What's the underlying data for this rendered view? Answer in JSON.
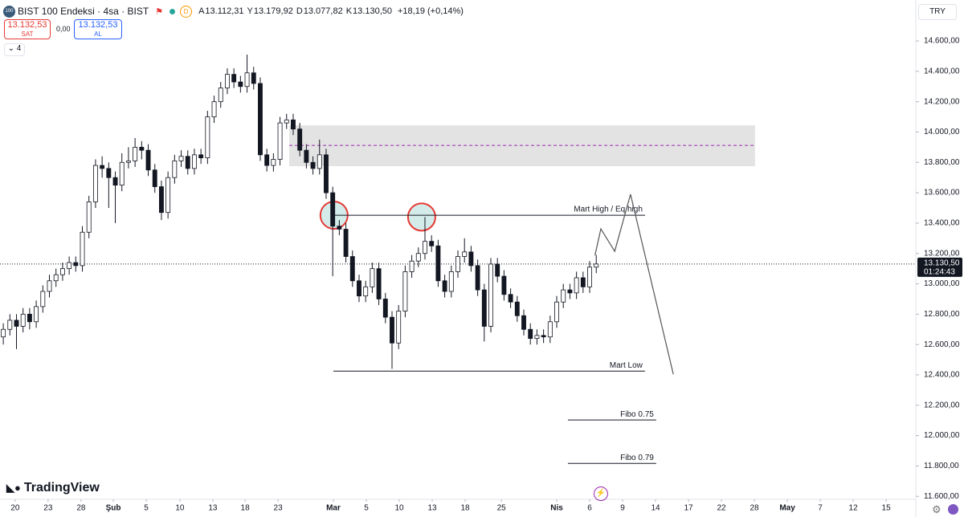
{
  "header": {
    "logo": "100",
    "symbol": "BIST 100 Endeksi · 4sa · BIST",
    "status": "D",
    "ohlc": [
      {
        "key": "A",
        "value": "13.112,31"
      },
      {
        "key": "Y",
        "value": "13.179,92"
      },
      {
        "key": "D",
        "value": "13.077,82"
      },
      {
        "key": "K",
        "value": "13.130,50"
      }
    ],
    "change": "+18,19 (+0,14%)",
    "sell": {
      "price": "13.132,53",
      "label": "SAT"
    },
    "spread": "0,00",
    "buy": {
      "price": "13.132,53",
      "label": "AL"
    },
    "indicators": "4",
    "currency": "TRY",
    "brand": "TradingView"
  },
  "chart_data": {
    "type": "candlestick",
    "up_color": "#ffffff",
    "down_color": "#131722",
    "wick_color": "#131722",
    "xlim": [
      -0.5,
      138.5
    ],
    "ylim": [
      11580,
      14870
    ],
    "yticks": [
      {
        "value": 11600,
        "label": "11.600,00"
      },
      {
        "value": 11800,
        "label": "11.800,00"
      },
      {
        "value": 12000,
        "label": "12.000,00"
      },
      {
        "value": 12200,
        "label": "12.200,00"
      },
      {
        "value": 12400,
        "label": "12.400,00"
      },
      {
        "value": 12600,
        "label": "12.600,00"
      },
      {
        "value": 12800,
        "label": "12.800,00"
      },
      {
        "value": 13000,
        "label": "13.000,00"
      },
      {
        "value": 13200,
        "label": "13.200,00"
      },
      {
        "value": 13400,
        "label": "13.400,00"
      },
      {
        "value": 13600,
        "label": "13.600,00"
      },
      {
        "value": 13800,
        "label": "13.800,00"
      },
      {
        "value": 14000,
        "label": "14.000,00"
      },
      {
        "value": 14200,
        "label": "14.200,00"
      },
      {
        "value": 14400,
        "label": "14.400,00"
      },
      {
        "value": 14600,
        "label": "14.600,00"
      }
    ],
    "xticks": [
      {
        "value": 1.8,
        "label": "20"
      },
      {
        "value": 6.8,
        "label": "23"
      },
      {
        "value": 11.8,
        "label": "28"
      },
      {
        "value": 16.7,
        "label": "Şub"
      },
      {
        "value": 21.7,
        "label": "5"
      },
      {
        "value": 26.8,
        "label": "10"
      },
      {
        "value": 31.8,
        "label": "13"
      },
      {
        "value": 36.7,
        "label": "18"
      },
      {
        "value": 41.7,
        "label": "23"
      },
      {
        "value": 50.1,
        "label": "Mar"
      },
      {
        "value": 55.1,
        "label": "5"
      },
      {
        "value": 60.1,
        "label": "10"
      },
      {
        "value": 65.1,
        "label": "13"
      },
      {
        "value": 70.1,
        "label": "18"
      },
      {
        "value": 75.6,
        "label": "25"
      },
      {
        "value": 84.0,
        "label": "Nis"
      },
      {
        "value": 89.0,
        "label": "6"
      },
      {
        "value": 94.0,
        "label": "9"
      },
      {
        "value": 99.0,
        "label": "14"
      },
      {
        "value": 104.0,
        "label": "17"
      },
      {
        "value": 109.0,
        "label": "22"
      },
      {
        "value": 114.0,
        "label": "28"
      },
      {
        "value": 119.0,
        "label": "May"
      },
      {
        "value": 124.0,
        "label": "7"
      },
      {
        "value": 129.0,
        "label": "12"
      },
      {
        "value": 134.0,
        "label": "15"
      }
    ],
    "last_price": {
      "value": 13130.5,
      "label": "13.130,50"
    },
    "countdown": "01:24:43",
    "candles": [
      [
        12650,
        12740,
        12600,
        12700
      ],
      [
        12700,
        12800,
        12660,
        12760
      ],
      [
        12760,
        12800,
        12570,
        12720
      ],
      [
        12720,
        12840,
        12680,
        12800
      ],
      [
        12800,
        12840,
        12700,
        12750
      ],
      [
        12750,
        12890,
        12710,
        12850
      ],
      [
        12850,
        12990,
        12810,
        12950
      ],
      [
        12950,
        13060,
        12910,
        13020
      ],
      [
        13020,
        13100,
        12980,
        13060
      ],
      [
        13060,
        13140,
        13020,
        13100
      ],
      [
        13100,
        13180,
        13060,
        13140
      ],
      [
        13140,
        13180,
        13080,
        13120
      ],
      [
        13120,
        13380,
        13080,
        13340
      ],
      [
        13340,
        13580,
        13300,
        13540
      ],
      [
        13540,
        13820,
        13500,
        13780
      ],
      [
        13780,
        13840,
        13700,
        13760
      ],
      [
        13760,
        13800,
        13500,
        13700
      ],
      [
        13700,
        13740,
        13400,
        13650
      ],
      [
        13650,
        13860,
        13610,
        13800
      ],
      [
        13800,
        13900,
        13760,
        13810
      ],
      [
        13810,
        13960,
        13770,
        13900
      ],
      [
        13900,
        13940,
        13820,
        13880
      ],
      [
        13880,
        13920,
        13710,
        13750
      ],
      [
        13750,
        13790,
        13600,
        13640
      ],
      [
        13640,
        13680,
        13420,
        13470
      ],
      [
        13470,
        13740,
        13430,
        13700
      ],
      [
        13700,
        13850,
        13660,
        13810
      ],
      [
        13810,
        13880,
        13770,
        13840
      ],
      [
        13840,
        13880,
        13720,
        13760
      ],
      [
        13760,
        13890,
        13720,
        13850
      ],
      [
        13850,
        13890,
        13790,
        13830
      ],
      [
        13830,
        14140,
        13790,
        14100
      ],
      [
        14100,
        14240,
        14060,
        14200
      ],
      [
        14200,
        14330,
        14160,
        14290
      ],
      [
        14290,
        14420,
        14250,
        14380
      ],
      [
        14380,
        14420,
        14290,
        14330
      ],
      [
        14330,
        14370,
        14260,
        14300
      ],
      [
        14300,
        14510,
        14260,
        14390
      ],
      [
        14390,
        14430,
        14280,
        14320
      ],
      [
        14320,
        14360,
        13810,
        13850
      ],
      [
        13850,
        13890,
        13740,
        13780
      ],
      [
        13780,
        13860,
        13740,
        13820
      ],
      [
        13820,
        14100,
        13780,
        14060
      ],
      [
        14060,
        14120,
        14020,
        14080
      ],
      [
        14080,
        14120,
        13980,
        14020
      ],
      [
        14020,
        14060,
        13840,
        13880
      ],
      [
        13880,
        13920,
        13760,
        13800
      ],
      [
        13800,
        13840,
        13720,
        13760
      ],
      [
        13760,
        13950,
        13720,
        13850
      ],
      [
        13850,
        13890,
        13560,
        13600
      ],
      [
        13600,
        13640,
        13050,
        13380
      ],
      [
        13380,
        13420,
        13320,
        13360
      ],
      [
        13360,
        13400,
        13140,
        13180
      ],
      [
        13180,
        13220,
        12980,
        13020
      ],
      [
        13020,
        13060,
        12880,
        12920
      ],
      [
        12920,
        13020,
        12880,
        12980
      ],
      [
        12980,
        13140,
        12940,
        13100
      ],
      [
        13100,
        13140,
        12860,
        12900
      ],
      [
        12900,
        12940,
        12740,
        12780
      ],
      [
        12780,
        12820,
        12440,
        12610
      ],
      [
        12610,
        12860,
        12570,
        12820
      ],
      [
        12820,
        13120,
        12780,
        13080
      ],
      [
        13080,
        13190,
        13040,
        13150
      ],
      [
        13150,
        13240,
        13110,
        13200
      ],
      [
        13200,
        13440,
        13160,
        13280
      ],
      [
        13280,
        13320,
        13210,
        13250
      ],
      [
        13250,
        13290,
        12980,
        13020
      ],
      [
        13020,
        13060,
        12910,
        12950
      ],
      [
        12950,
        13120,
        12910,
        13080
      ],
      [
        13080,
        13220,
        13040,
        13180
      ],
      [
        13180,
        13300,
        13140,
        13210
      ],
      [
        13210,
        13250,
        13080,
        13120
      ],
      [
        13120,
        13160,
        12920,
        12960
      ],
      [
        12960,
        13000,
        12620,
        12720
      ],
      [
        12720,
        13170,
        12680,
        13130
      ],
      [
        13130,
        13170,
        13010,
        13050
      ],
      [
        13050,
        13090,
        12890,
        12930
      ],
      [
        12930,
        12970,
        12840,
        12880
      ],
      [
        12880,
        12920,
        12750,
        12790
      ],
      [
        12790,
        12830,
        12660,
        12700
      ],
      [
        12700,
        12740,
        12600,
        12640
      ],
      [
        12640,
        12700,
        12600,
        12660
      ],
      [
        12660,
        12700,
        12610,
        12650
      ],
      [
        12650,
        12790,
        12610,
        12750
      ],
      [
        12750,
        12920,
        12710,
        12880
      ],
      [
        12880,
        13000,
        12840,
        12960
      ],
      [
        12960,
        13000,
        12900,
        12940
      ],
      [
        12940,
        13080,
        12900,
        13040
      ],
      [
        13040,
        13080,
        12940,
        12980
      ],
      [
        12980,
        13150,
        12940,
        13110
      ],
      [
        13110,
        13190,
        13070,
        13130.5
      ]
    ],
    "zone": {
      "x": [
        43.4,
        114.1
      ],
      "y": [
        13775,
        14044
      ],
      "mid": 13912,
      "color": "#e3e3e3",
      "mid_color": "#9c27b0"
    },
    "levels": [
      {
        "label": "Mart High / Eq high",
        "y": 13452,
        "x": [
          50.1,
          97.4
        ]
      },
      {
        "label": "Mart Low",
        "y": 12425,
        "x": [
          50.1,
          97.4
        ]
      },
      {
        "label": "Fibo 0.75",
        "y": 12103,
        "x": [
          85.7,
          99.1
        ]
      },
      {
        "label": "Fibo 0.79",
        "y": 11817,
        "x": [
          85.7,
          99.1
        ]
      }
    ],
    "circles": {
      "x": [
        50.2,
        63.5
      ],
      "y": [
        13452,
        13440
      ],
      "fill": "#d4ece9",
      "stroke": "#e53935"
    },
    "projection": {
      "x": [
        89.8,
        90.7,
        92.8,
        95.2,
        101.7
      ],
      "y": [
        13187,
        13362,
        13214,
        13590,
        12404
      ],
      "color": "#555555"
    }
  }
}
